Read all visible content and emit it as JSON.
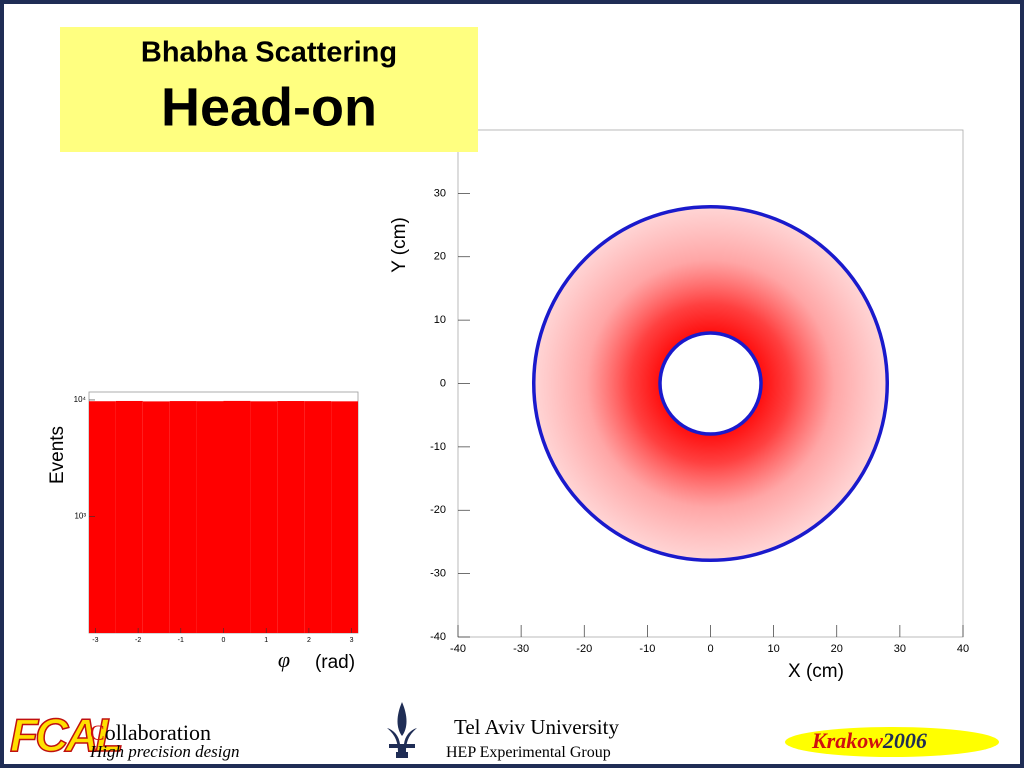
{
  "header": {
    "title": "Bhabha Scattering",
    "subtitle": "Head-on"
  },
  "chart_data": [
    {
      "type": "histogram",
      "y_label": "Events",
      "x_symbol": "φ",
      "x_label": "(rad)",
      "bins": [
        -3.15,
        -2.52,
        -1.89,
        -1.26,
        -0.63,
        0,
        0.63,
        1.26,
        1.89,
        2.52,
        3.15
      ],
      "values": [
        9750,
        9800,
        9720,
        9780,
        9760,
        9810,
        9740,
        9790,
        9770,
        9730
      ],
      "color": "#ff0000",
      "log_y": true,
      "xlim": [
        -3.15,
        3.15
      ],
      "ylim": [
        100,
        11700
      ],
      "xticks": [
        -3,
        -2,
        -1,
        0,
        1,
        2,
        3
      ],
      "yticks": [
        {
          "value": 1000,
          "label": "10³"
        },
        {
          "value": 10000,
          "label": "10⁴"
        }
      ]
    },
    {
      "type": "ring",
      "x_label": "X (cm)",
      "y_label": "Y (cm)",
      "circles": [
        {
          "r": 8
        },
        {
          "r": 28
        }
      ],
      "circle_color": "#1a1acc",
      "point_color": "#ff0000",
      "xlim": [
        -40,
        40
      ],
      "ylim": [
        -40,
        40
      ],
      "xticks": [
        -40,
        -30,
        -20,
        -10,
        0,
        10,
        20,
        30,
        40
      ],
      "yticks": [
        -40,
        -30,
        -20,
        -10,
        0,
        10,
        20,
        30
      ]
    }
  ],
  "footer": {
    "logo": "FCAL",
    "collaboration": "Collaboration",
    "tagline": "High precision design",
    "university": "Tel Aviv University",
    "group": "HEP Experimental Group",
    "event_place": "Krakow",
    "event_year": "2006"
  }
}
